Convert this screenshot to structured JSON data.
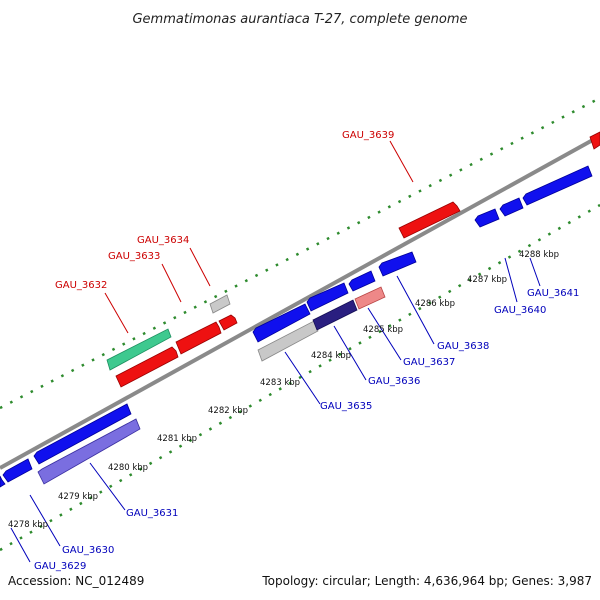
{
  "title": "Gemmatimonas aurantiaca T-27, complete genome",
  "footer": {
    "accession": "Accession: NC_012489",
    "summary": "Topology: circular; Length: 4,636,964 bp; Genes: 3,987"
  },
  "colors": {
    "forward_label": "#cc0000",
    "reverse_label": "#0000bb",
    "ticks": "#2e8b2e",
    "backbone": "#8a8a8a"
  },
  "kbp_markers": [
    "4278 kbp",
    "4279 kbp",
    "4280 kbp",
    "4281 kbp",
    "4282 kbp",
    "4283 kbp",
    "4284 kbp",
    "4285 kbp",
    "4286 kbp",
    "4287 kbp",
    "4288 kbp"
  ],
  "gene_labels": [
    {
      "name": "GAU_3629",
      "strand": "reverse"
    },
    {
      "name": "GAU_3630",
      "strand": "reverse"
    },
    {
      "name": "GAU_3631",
      "strand": "reverse"
    },
    {
      "name": "GAU_3632",
      "strand": "forward"
    },
    {
      "name": "GAU_3633",
      "strand": "forward"
    },
    {
      "name": "GAU_3634",
      "strand": "forward"
    },
    {
      "name": "GAU_3635",
      "strand": "reverse"
    },
    {
      "name": "GAU_3636",
      "strand": "reverse"
    },
    {
      "name": "GAU_3637",
      "strand": "reverse"
    },
    {
      "name": "GAU_3638",
      "strand": "reverse"
    },
    {
      "name": "GAU_3639",
      "strand": "forward"
    },
    {
      "name": "GAU_3640",
      "strand": "reverse"
    },
    {
      "name": "GAU_3641",
      "strand": "reverse"
    }
  ]
}
